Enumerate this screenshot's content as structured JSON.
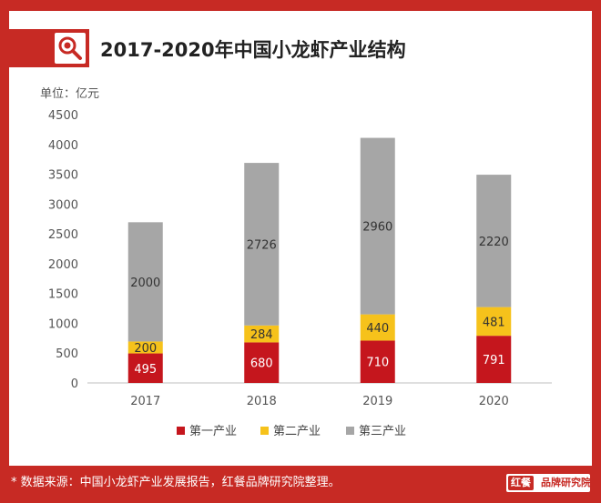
{
  "header": {
    "title": "2017-2020年中国小龙虾产业结构",
    "unit_label": "单位：亿元"
  },
  "footer": {
    "source": "* 数据来源：中国小龙虾产业发展报告，红餐品牌研究院整理。",
    "brand_logo": "红餐",
    "brand_name": "品牌研究院"
  },
  "colors": {
    "accent": "#c72a24",
    "primary": "#c5161d",
    "secondary": "#f6c21b",
    "tertiary": "#a6a6a6"
  },
  "icons": {
    "title_icon": "search-icon"
  },
  "chart_data": {
    "type": "bar",
    "stacked": true,
    "title": "2017-2020年中国小龙虾产业结构",
    "ylabel": "单位：亿元",
    "categories": [
      "2017",
      "2018",
      "2019",
      "2020"
    ],
    "ylim": [
      0,
      4500
    ],
    "yticks": [
      "0",
      "500",
      "1000",
      "1500",
      "2000",
      "2500",
      "3000",
      "3500",
      "4000",
      "4500"
    ],
    "series": [
      {
        "name": "第一产业",
        "values": [
          495,
          680,
          710,
          791
        ],
        "color": "#c5161d"
      },
      {
        "name": "第二产业",
        "values": [
          200,
          284,
          440,
          481
        ],
        "color": "#f6c21b"
      },
      {
        "name": "第三产业",
        "values": [
          2000,
          2726,
          2960,
          2220
        ],
        "color": "#a6a6a6"
      }
    ],
    "legend_position": "bottom",
    "grid": false
  }
}
